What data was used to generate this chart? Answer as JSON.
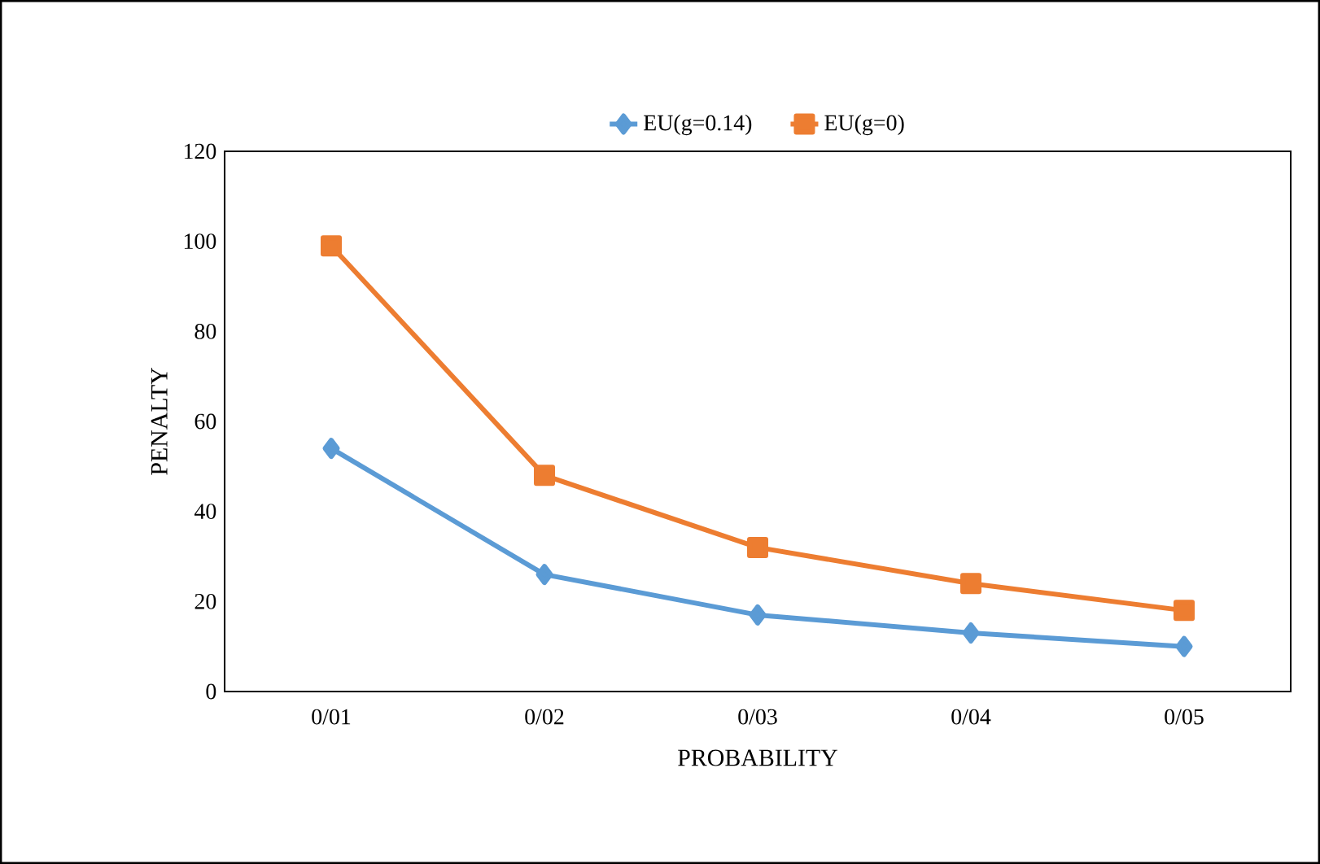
{
  "chart_data": {
    "type": "line",
    "xlabel": "PROBABILITY",
    "ylabel": "PENALTY",
    "categories": [
      "0/01",
      "0/02",
      "0/03",
      "0/04",
      "0/05"
    ],
    "series": [
      {
        "name": "EU(g=0.14)",
        "color": "#5b9bd5",
        "marker": "diamond",
        "values": [
          54,
          26,
          17,
          13,
          10
        ]
      },
      {
        "name": "EU(g=0)",
        "color": "#ed7d31",
        "marker": "square",
        "values": [
          99,
          48,
          32,
          24,
          18
        ]
      }
    ],
    "ylim": [
      0,
      120
    ],
    "yticks": [
      0,
      20,
      40,
      60,
      80,
      100,
      120
    ],
    "legend": "top"
  }
}
